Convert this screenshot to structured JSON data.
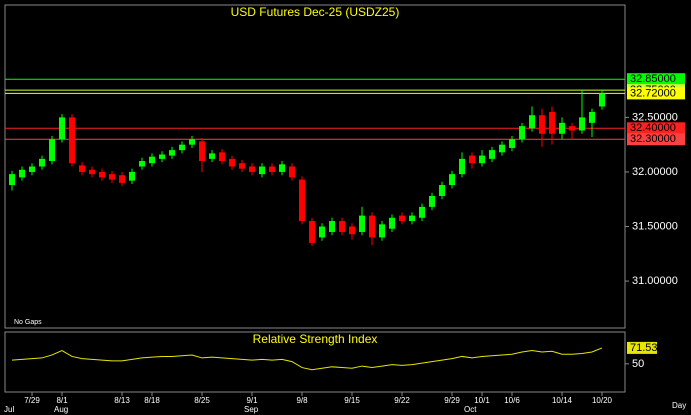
{
  "chart_data": [
    {
      "type": "candlestick",
      "title": "USD Futures Dec-25 (USDZ25)",
      "note": "No Gaps",
      "x_unit": "Day",
      "categories": [
        null,
        null,
        "7/29",
        null,
        null,
        "8/1",
        null,
        null,
        null,
        null,
        null,
        "8/13",
        null,
        null,
        "8/18",
        null,
        null,
        null,
        null,
        "8/25",
        null,
        null,
        null,
        null,
        "9/1",
        null,
        null,
        null,
        null,
        "9/8",
        null,
        null,
        null,
        null,
        "9/15",
        null,
        null,
        null,
        null,
        "9/22",
        null,
        null,
        null,
        null,
        "9/29",
        null,
        null,
        "10/1",
        null,
        null,
        "10/6",
        null,
        null,
        null,
        null,
        "10/14",
        null,
        null,
        null,
        "10/20",
        null
      ],
      "months": [
        "Jul",
        null,
        null,
        null,
        null,
        "Aug",
        null,
        null,
        null,
        null,
        null,
        null,
        null,
        null,
        null,
        null,
        null,
        null,
        null,
        null,
        null,
        null,
        null,
        null,
        "Sep",
        null,
        null,
        null,
        null,
        null,
        null,
        null,
        null,
        null,
        null,
        null,
        null,
        null,
        null,
        null,
        null,
        null,
        null,
        null,
        null,
        null,
        "Oct",
        null,
        null,
        null,
        null,
        null,
        null,
        null,
        null,
        null,
        null,
        null,
        null,
        null
      ],
      "open": [
        31.88,
        31.95,
        32.0,
        32.05,
        32.1,
        32.3,
        32.5,
        32.06,
        32.02,
        32.0,
        31.98,
        31.97,
        31.92,
        32.05,
        32.08,
        32.12,
        32.15,
        32.2,
        32.25,
        32.28,
        32.12,
        32.18,
        32.12,
        32.08,
        32.05,
        31.98,
        32.05,
        32.0,
        32.05,
        31.93,
        31.55,
        31.4,
        31.45,
        31.55,
        31.5,
        31.45,
        31.6,
        31.4,
        31.48,
        31.6,
        31.55,
        31.58,
        31.68,
        31.78,
        31.88,
        31.98,
        32.15,
        32.08,
        32.12,
        32.18,
        32.22,
        32.3,
        32.4,
        32.52,
        32.55,
        32.35,
        32.42,
        32.38,
        32.45,
        32.6
      ],
      "high": [
        32.01,
        32.05,
        32.08,
        32.15,
        32.33,
        32.53,
        32.53,
        32.09,
        32.05,
        32.03,
        32.01,
        32.0,
        32.03,
        32.13,
        32.17,
        32.19,
        32.23,
        32.28,
        32.33,
        32.31,
        32.2,
        32.21,
        32.15,
        32.11,
        32.08,
        32.08,
        32.08,
        32.1,
        32.08,
        31.96,
        31.58,
        31.53,
        31.58,
        31.58,
        31.53,
        31.68,
        31.63,
        31.55,
        31.61,
        31.63,
        31.63,
        31.71,
        31.81,
        31.91,
        32.01,
        32.18,
        32.18,
        32.2,
        32.23,
        32.28,
        32.33,
        32.45,
        32.6,
        32.58,
        32.6,
        32.5,
        32.45,
        32.75,
        32.58,
        32.75
      ],
      "low": [
        31.83,
        31.92,
        31.97,
        32.02,
        32.07,
        32.27,
        32.05,
        31.97,
        31.95,
        31.92,
        31.9,
        31.87,
        31.89,
        32.02,
        32.05,
        32.09,
        32.12,
        32.17,
        32.22,
        32.0,
        32.09,
        32.07,
        32.02,
        32.0,
        31.97,
        31.95,
        31.97,
        31.97,
        31.92,
        31.52,
        31.32,
        31.37,
        31.42,
        31.42,
        31.38,
        31.42,
        31.33,
        31.37,
        31.45,
        31.52,
        31.52,
        31.55,
        31.65,
        31.75,
        31.85,
        31.95,
        32.03,
        32.05,
        32.09,
        32.15,
        32.19,
        32.27,
        32.37,
        32.23,
        32.25,
        32.3,
        32.3,
        32.35,
        32.32,
        32.57
      ],
      "close": [
        31.98,
        32.02,
        32.05,
        32.12,
        32.3,
        32.5,
        32.08,
        32.0,
        31.98,
        31.95,
        31.93,
        31.9,
        32.0,
        32.1,
        32.14,
        32.16,
        32.2,
        32.25,
        32.3,
        32.1,
        32.17,
        32.1,
        32.05,
        32.03,
        32.0,
        32.05,
        32.0,
        32.07,
        31.95,
        31.55,
        31.35,
        31.5,
        31.55,
        31.45,
        31.43,
        31.6,
        31.4,
        31.52,
        31.58,
        31.55,
        31.6,
        31.68,
        31.78,
        31.88,
        31.98,
        32.12,
        32.08,
        32.15,
        32.2,
        32.25,
        32.3,
        32.42,
        32.52,
        32.35,
        32.35,
        32.45,
        32.38,
        32.5,
        32.55,
        32.72
      ],
      "up_color": "#00ff00",
      "down_color": "#ff0000",
      "ylim": [
        30.57,
        33.53
      ],
      "yticks": [
        {
          "value": 31.0,
          "label": "31.00000"
        },
        {
          "value": 31.5,
          "label": "31.50000"
        },
        {
          "value": 32.0,
          "label": "32.00000"
        },
        {
          "value": 32.5,
          "label": "32.50000"
        }
      ],
      "levels": [
        {
          "value": 32.85,
          "label": "32.85000",
          "color": "#00ff00"
        },
        {
          "value": 32.75,
          "label": "32.75000",
          "color": "#ccff33"
        },
        {
          "value": 32.72,
          "label": "32.72000",
          "color": "#ffff00"
        },
        {
          "value": 32.4,
          "label": "32.40000",
          "color": "#ff2020"
        },
        {
          "value": 32.3,
          "label": "32.30000",
          "color": "#ff4040"
        }
      ]
    },
    {
      "type": "line",
      "title": "Relative Strength Index",
      "color": "#e6e600",
      "values": [
        55,
        56,
        57,
        58,
        62,
        68,
        60,
        57,
        56,
        55,
        54,
        54,
        56,
        58,
        59,
        60,
        60,
        61,
        62,
        58,
        59,
        58,
        57,
        56,
        55,
        56,
        55,
        56,
        53,
        45,
        42,
        44,
        46,
        45,
        44,
        47,
        45,
        47,
        49,
        48,
        49,
        51,
        53,
        55,
        57,
        60,
        58,
        60,
        61,
        62,
        63,
        66,
        68,
        66,
        67,
        63,
        63,
        64,
        66,
        71.53
      ],
      "ylim": [
        12,
        93
      ],
      "yticks": [
        50
      ]
    }
  ]
}
